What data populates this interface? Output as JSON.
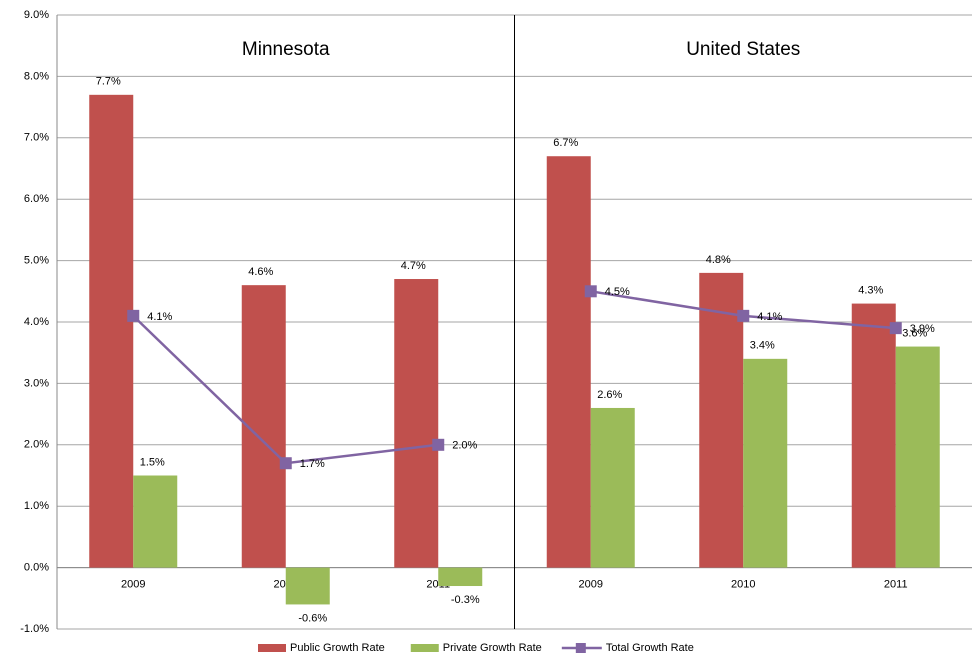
{
  "chart_data": {
    "type": "bar_line",
    "panels": [
      "Minnesota",
      "United States"
    ],
    "categories": [
      "2009",
      "2010",
      "2011"
    ],
    "series": [
      {
        "name": "Public Growth Rate",
        "type": "bar",
        "color": "#c0504d",
        "values": [
          [
            7.7,
            4.6,
            4.7
          ],
          [
            6.7,
            4.8,
            4.3
          ]
        ],
        "value_labels": [
          [
            "7.7%",
            "4.6%",
            "4.7%"
          ],
          [
            "6.7%",
            "4.8%",
            "4.3%"
          ]
        ]
      },
      {
        "name": "Private Growth Rate",
        "type": "bar",
        "color": "#9bbb59",
        "values": [
          [
            1.5,
            -0.6,
            -0.3
          ],
          [
            2.6,
            3.4,
            3.6
          ]
        ],
        "value_labels": [
          [
            "1.5%",
            "-0.6%",
            "-0.3%"
          ],
          [
            "2.6%",
            "3.4%",
            "3.6%"
          ]
        ]
      },
      {
        "name": "Total Growth Rate",
        "type": "line",
        "color": "#8064a2",
        "values": [
          [
            4.1,
            1.7,
            2.0
          ],
          [
            4.5,
            4.1,
            3.9
          ]
        ],
        "value_labels": [
          [
            "4.1%",
            "1.7%",
            "2.0%"
          ],
          [
            "4.5%",
            "4.1%",
            "3.9%"
          ]
        ]
      }
    ],
    "ylim": [
      -1,
      9
    ],
    "yticks": [
      {
        "value": -1,
        "label": "-1.0%"
      },
      {
        "value": 0,
        "label": "0.0%"
      },
      {
        "value": 1,
        "label": "1.0%"
      },
      {
        "value": 2,
        "label": "2.0%"
      },
      {
        "value": 3,
        "label": "3.0%"
      },
      {
        "value": 4,
        "label": "4.0%"
      },
      {
        "value": 5,
        "label": "5.0%"
      },
      {
        "value": 6,
        "label": "6.0%"
      },
      {
        "value": 7,
        "label": "7.0%"
      },
      {
        "value": 8,
        "label": "8.0%"
      },
      {
        "value": 9,
        "label": "9.0%"
      }
    ],
    "grid": true,
    "legend": "bottom"
  }
}
